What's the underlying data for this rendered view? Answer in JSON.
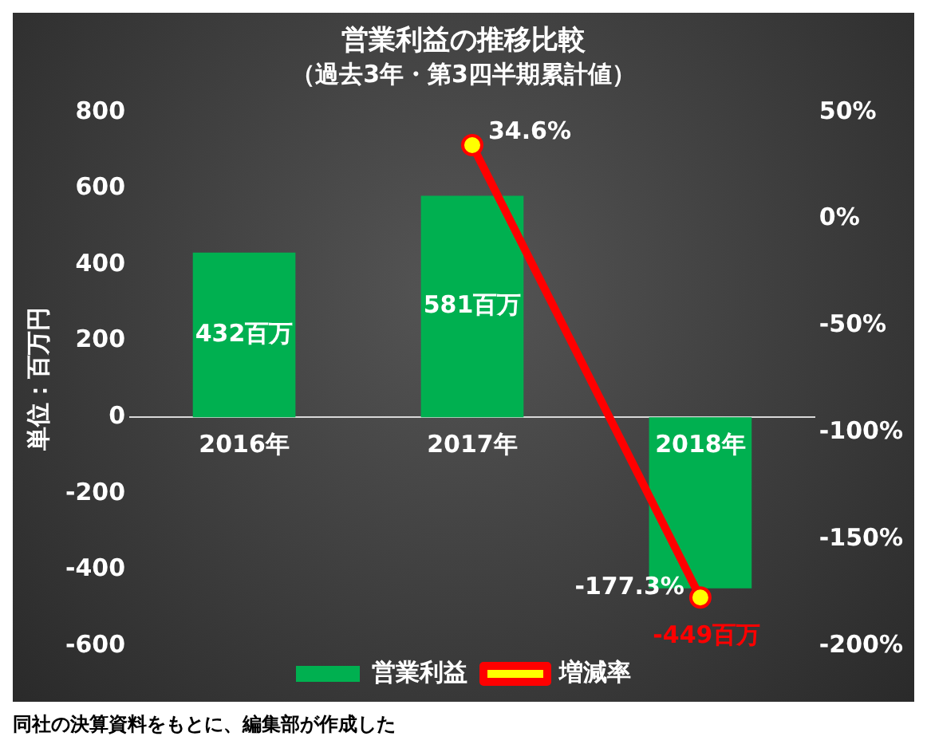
{
  "chart_data": {
    "type": "bar",
    "title": "営業利益の推移比較",
    "subtitle": "（過去3年・第3四半期累計値）",
    "ylabel": "単位：百万円",
    "categories": [
      "2016年",
      "2017年",
      "2018年"
    ],
    "series": [
      {
        "name": "営業利益",
        "color": "#00b050",
        "values": [
          432,
          581,
          -449
        ],
        "value_labels": [
          "432百万",
          "581百万",
          "-449百万"
        ]
      },
      {
        "name": "増減率",
        "type": "line",
        "axis": "y2",
        "color": "#ff0000",
        "values": [
          null,
          34.6,
          -177.3
        ],
        "value_labels": [
          null,
          "34.6%",
          "-177.3%"
        ]
      }
    ],
    "ylim": [
      -600,
      800
    ],
    "yticks": [
      -600,
      -400,
      -200,
      0,
      200,
      400,
      600,
      800
    ],
    "y2lim": [
      -200,
      50
    ],
    "y2ticks": [
      {
        "value": -200,
        "label": "-200%"
      },
      {
        "value": -150,
        "label": "-150%"
      },
      {
        "value": -100,
        "label": "-100%"
      },
      {
        "value": -50,
        "label": "-50%"
      },
      {
        "value": 0,
        "label": "0%"
      },
      {
        "value": 50,
        "label": "50%"
      }
    ],
    "legend": "bottom",
    "marker": "circle",
    "line_style": "solid",
    "annotations": [
      "同社の決算資料をもとに、編集部が作成した"
    ]
  }
}
